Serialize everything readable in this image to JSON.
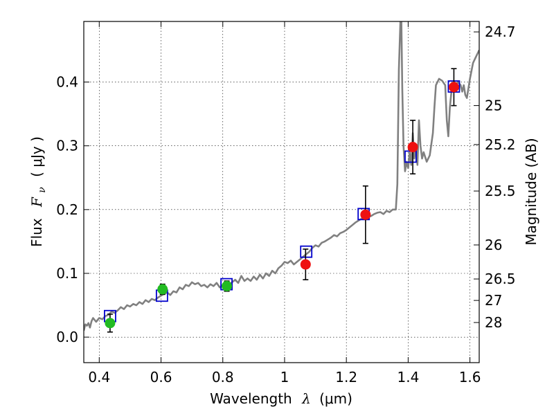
{
  "chart_data": {
    "type": "scatter",
    "xlabel_text": "Wavelength",
    "xlabel_symbol": "λ",
    "xlabel_unit": "(μm)",
    "ylabel_text": "Flux",
    "ylabel_symbol": "F",
    "ylabel_sub": "ν",
    "ylabel_unit": "( μJy )",
    "y2label": "Magnitude (AB)",
    "xlim": [
      0.35,
      1.63
    ],
    "ylim": [
      -0.04,
      0.495
    ],
    "grid": true,
    "x_ticks": [
      {
        "value": 0.4,
        "label": "0.4"
      },
      {
        "value": 0.6,
        "label": "0.6"
      },
      {
        "value": 0.8,
        "label": "0.8"
      },
      {
        "value": 1.0,
        "label": "1"
      },
      {
        "value": 1.2,
        "label": "1.2"
      },
      {
        "value": 1.4,
        "label": "1.4"
      },
      {
        "value": 1.6,
        "label": "1.6"
      }
    ],
    "y_ticks": [
      {
        "value": 0.0,
        "label": "0.0"
      },
      {
        "value": 0.1,
        "label": "0.1"
      },
      {
        "value": 0.2,
        "label": "0.2"
      },
      {
        "value": 0.3,
        "label": "0.3"
      },
      {
        "value": 0.4,
        "label": "0.4"
      }
    ],
    "mag_ticks": [
      {
        "mag": 24.7,
        "label": "24.7"
      },
      {
        "mag": 25.0,
        "label": "25"
      },
      {
        "mag": 25.2,
        "label": "25.2"
      },
      {
        "mag": 25.5,
        "label": "25.5"
      },
      {
        "mag": 26.0,
        "label": "26"
      },
      {
        "mag": 26.5,
        "label": "26.5"
      },
      {
        "mag": 27.0,
        "label": "27"
      },
      {
        "mag": 28.0,
        "label": "28"
      }
    ],
    "spectrum": {
      "color": "#808080",
      "points": [
        [
          0.35,
          0.01
        ],
        [
          0.355,
          0.02
        ],
        [
          0.36,
          0.018
        ],
        [
          0.365,
          0.022
        ],
        [
          0.37,
          0.015
        ],
        [
          0.375,
          0.025
        ],
        [
          0.38,
          0.03
        ],
        [
          0.39,
          0.024
        ],
        [
          0.4,
          0.03
        ],
        [
          0.41,
          0.028
        ],
        [
          0.42,
          0.033
        ],
        [
          0.43,
          0.035
        ],
        [
          0.44,
          0.04
        ],
        [
          0.45,
          0.038
        ],
        [
          0.46,
          0.042
        ],
        [
          0.47,
          0.047
        ],
        [
          0.48,
          0.044
        ],
        [
          0.49,
          0.05
        ],
        [
          0.5,
          0.048
        ],
        [
          0.51,
          0.052
        ],
        [
          0.52,
          0.05
        ],
        [
          0.53,
          0.055
        ],
        [
          0.54,
          0.052
        ],
        [
          0.55,
          0.058
        ],
        [
          0.56,
          0.055
        ],
        [
          0.57,
          0.06
        ],
        [
          0.58,
          0.058
        ],
        [
          0.59,
          0.062
        ],
        [
          0.6,
          0.065
        ],
        [
          0.61,
          0.068
        ],
        [
          0.62,
          0.07
        ],
        [
          0.63,
          0.066
        ],
        [
          0.64,
          0.072
        ],
        [
          0.65,
          0.07
        ],
        [
          0.66,
          0.078
        ],
        [
          0.67,
          0.075
        ],
        [
          0.68,
          0.082
        ],
        [
          0.69,
          0.08
        ],
        [
          0.7,
          0.086
        ],
        [
          0.71,
          0.083
        ],
        [
          0.72,
          0.085
        ],
        [
          0.73,
          0.08
        ],
        [
          0.74,
          0.082
        ],
        [
          0.75,
          0.078
        ],
        [
          0.76,
          0.083
        ],
        [
          0.77,
          0.08
        ],
        [
          0.78,
          0.085
        ],
        [
          0.79,
          0.078
        ],
        [
          0.8,
          0.082
        ],
        [
          0.81,
          0.085
        ],
        [
          0.82,
          0.083
        ],
        [
          0.83,
          0.086
        ],
        [
          0.84,
          0.09
        ],
        [
          0.85,
          0.085
        ],
        [
          0.86,
          0.096
        ],
        [
          0.87,
          0.088
        ],
        [
          0.88,
          0.092
        ],
        [
          0.89,
          0.088
        ],
        [
          0.9,
          0.095
        ],
        [
          0.91,
          0.09
        ],
        [
          0.92,
          0.098
        ],
        [
          0.93,
          0.092
        ],
        [
          0.94,
          0.1
        ],
        [
          0.95,
          0.096
        ],
        [
          0.96,
          0.104
        ],
        [
          0.97,
          0.1
        ],
        [
          0.98,
          0.108
        ],
        [
          0.99,
          0.112
        ],
        [
          1.0,
          0.118
        ],
        [
          1.01,
          0.116
        ],
        [
          1.02,
          0.12
        ],
        [
          1.03,
          0.114
        ],
        [
          1.04,
          0.118
        ],
        [
          1.05,
          0.122
        ],
        [
          1.06,
          0.126
        ],
        [
          1.07,
          0.13
        ],
        [
          1.08,
          0.134
        ],
        [
          1.09,
          0.14
        ],
        [
          1.1,
          0.144
        ],
        [
          1.11,
          0.142
        ],
        [
          1.12,
          0.148
        ],
        [
          1.13,
          0.15
        ],
        [
          1.14,
          0.153
        ],
        [
          1.15,
          0.156
        ],
        [
          1.16,
          0.16
        ],
        [
          1.17,
          0.158
        ],
        [
          1.18,
          0.163
        ],
        [
          1.19,
          0.165
        ],
        [
          1.2,
          0.168
        ],
        [
          1.21,
          0.172
        ],
        [
          1.22,
          0.176
        ],
        [
          1.23,
          0.18
        ],
        [
          1.24,
          0.183
        ],
        [
          1.25,
          0.186
        ],
        [
          1.26,
          0.19
        ],
        [
          1.27,
          0.188
        ],
        [
          1.28,
          0.19
        ],
        [
          1.29,
          0.193
        ],
        [
          1.3,
          0.195
        ],
        [
          1.31,
          0.196
        ],
        [
          1.32,
          0.193
        ],
        [
          1.33,
          0.198
        ],
        [
          1.34,
          0.196
        ],
        [
          1.35,
          0.2
        ],
        [
          1.36,
          0.2
        ],
        [
          1.365,
          0.24
        ],
        [
          1.37,
          0.42
        ],
        [
          1.375,
          0.495
        ],
        [
          1.378,
          0.495
        ],
        [
          1.381,
          0.39
        ],
        [
          1.385,
          0.3
        ],
        [
          1.39,
          0.26
        ],
        [
          1.395,
          0.275
        ],
        [
          1.4,
          0.265
        ],
        [
          1.405,
          0.29
        ],
        [
          1.41,
          0.27
        ],
        [
          1.415,
          0.32
        ],
        [
          1.42,
          0.28
        ],
        [
          1.425,
          0.3
        ],
        [
          1.43,
          0.27
        ],
        [
          1.435,
          0.34
        ],
        [
          1.44,
          0.3
        ],
        [
          1.445,
          0.28
        ],
        [
          1.45,
          0.29
        ],
        [
          1.46,
          0.275
        ],
        [
          1.47,
          0.285
        ],
        [
          1.48,
          0.32
        ],
        [
          1.485,
          0.36
        ],
        [
          1.49,
          0.395
        ],
        [
          1.5,
          0.405
        ],
        [
          1.51,
          0.402
        ],
        [
          1.52,
          0.395
        ],
        [
          1.525,
          0.34
        ],
        [
          1.53,
          0.315
        ],
        [
          1.535,
          0.36
        ],
        [
          1.54,
          0.385
        ],
        [
          1.55,
          0.39
        ],
        [
          1.56,
          0.4
        ],
        [
          1.565,
          0.398
        ],
        [
          1.57,
          0.395
        ],
        [
          1.575,
          0.385
        ],
        [
          1.58,
          0.395
        ],
        [
          1.585,
          0.38
        ],
        [
          1.59,
          0.375
        ],
        [
          1.595,
          0.39
        ],
        [
          1.6,
          0.405
        ],
        [
          1.61,
          0.43
        ],
        [
          1.62,
          0.44
        ],
        [
          1.63,
          0.45
        ]
      ]
    },
    "model_photometry": {
      "marker": "open-square",
      "color": "#0000cc",
      "points": [
        [
          0.435,
          0.033
        ],
        [
          0.603,
          0.065
        ],
        [
          0.812,
          0.083
        ],
        [
          1.07,
          0.134
        ],
        [
          1.256,
          0.193
        ],
        [
          1.408,
          0.283
        ],
        [
          1.548,
          0.393
        ]
      ]
    },
    "observed_green": {
      "color": "#22bb22",
      "points": [
        {
          "x": 0.435,
          "y": 0.022,
          "err": 0.014
        },
        {
          "x": 0.605,
          "y": 0.075,
          "err": 0.008
        },
        {
          "x": 0.813,
          "y": 0.08,
          "err": 0.008
        }
      ]
    },
    "observed_red": {
      "color": "#ee1111",
      "points": [
        {
          "x": 1.068,
          "y": 0.114,
          "err": 0.024
        },
        {
          "x": 1.262,
          "y": 0.192,
          "err": 0.045
        },
        {
          "x": 1.415,
          "y": 0.298,
          "err": 0.042
        },
        {
          "x": 1.548,
          "y": 0.392,
          "err": 0.029
        }
      ]
    }
  }
}
